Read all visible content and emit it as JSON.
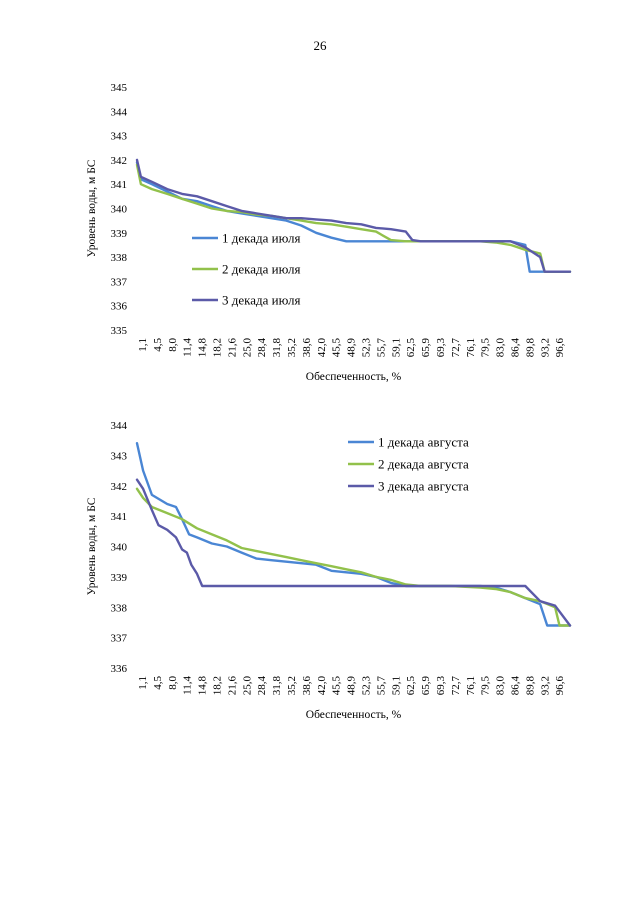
{
  "page_number": "26",
  "colors": {
    "series1": "#4a86d4",
    "series2": "#92c14b",
    "series3": "#5b5aa8"
  },
  "chart_data": [
    {
      "type": "line",
      "title": "",
      "xlabel": "Обеспеченность, %",
      "ylabel": "Уровень воды, м БС",
      "ylim": [
        335,
        345
      ],
      "yticks": [
        "335",
        "336",
        "337",
        "338",
        "339",
        "340",
        "341",
        "342",
        "343",
        "344",
        "345"
      ],
      "xlim": [
        1.1,
        100
      ],
      "categories": [
        "1,1",
        "4,5",
        "8,0",
        "11,4",
        "14,8",
        "18,2",
        "21,6",
        "25,0",
        "28,4",
        "31,8",
        "35,2",
        "38,6",
        "42,0",
        "45,5",
        "48,9",
        "52,3",
        "55,7",
        "59,1",
        "62,5",
        "65,9",
        "69,3",
        "72,7",
        "76,1",
        "79,5",
        "83,0",
        "86,4",
        "89,8",
        "93,2",
        "96,6"
      ],
      "legend_position": "center-left",
      "series": [
        {
          "name": "1 декада июля",
          "color_key": "series1",
          "points": [
            [
              1.1,
              341.9
            ],
            [
              2,
              341.2
            ],
            [
              4.5,
              341.0
            ],
            [
              8,
              340.7
            ],
            [
              11.4,
              340.4
            ],
            [
              14.8,
              340.3
            ],
            [
              18.2,
              340.1
            ],
            [
              21.6,
              339.9
            ],
            [
              25,
              339.8
            ],
            [
              28.4,
              339.7
            ],
            [
              31.8,
              339.6
            ],
            [
              35.2,
              339.5
            ],
            [
              38.6,
              339.3
            ],
            [
              42,
              339.0
            ],
            [
              45.5,
              338.8
            ],
            [
              48.9,
              338.65
            ],
            [
              52.3,
              338.65
            ],
            [
              55.7,
              338.65
            ],
            [
              59.1,
              338.65
            ],
            [
              62.5,
              338.65
            ],
            [
              65.9,
              338.65
            ],
            [
              72.7,
              338.65
            ],
            [
              79.5,
              338.65
            ],
            [
              86.4,
              338.65
            ],
            [
              89.8,
              338.5
            ],
            [
              90.8,
              337.4
            ],
            [
              93.2,
              337.4
            ],
            [
              100,
              337.4
            ]
          ]
        },
        {
          "name": "2 декада июля",
          "color_key": "series2",
          "points": [
            [
              1.1,
              341.8
            ],
            [
              2,
              341.0
            ],
            [
              4.5,
              340.8
            ],
            [
              8,
              340.6
            ],
            [
              11.4,
              340.4
            ],
            [
              14.8,
              340.2
            ],
            [
              18.2,
              340.0
            ],
            [
              21.6,
              339.9
            ],
            [
              25,
              339.85
            ],
            [
              28.4,
              339.75
            ],
            [
              31.8,
              339.7
            ],
            [
              35.2,
              339.6
            ],
            [
              38.6,
              339.5
            ],
            [
              42,
              339.4
            ],
            [
              45.5,
              339.35
            ],
            [
              48.9,
              339.25
            ],
            [
              52.3,
              339.15
            ],
            [
              55.7,
              339.05
            ],
            [
              59.1,
              338.7
            ],
            [
              62.5,
              338.65
            ],
            [
              65.9,
              338.65
            ],
            [
              72.7,
              338.65
            ],
            [
              79.5,
              338.65
            ],
            [
              83,
              338.6
            ],
            [
              86.4,
              338.5
            ],
            [
              89.8,
              338.3
            ],
            [
              93.2,
              338.15
            ],
            [
              94.2,
              337.4
            ],
            [
              100,
              337.4
            ]
          ]
        },
        {
          "name": "3 декада июля",
          "color_key": "series3",
          "points": [
            [
              1.1,
              342.0
            ],
            [
              2,
              341.3
            ],
            [
              4.5,
              341.1
            ],
            [
              8,
              340.8
            ],
            [
              11.4,
              340.6
            ],
            [
              14.8,
              340.5
            ],
            [
              18.2,
              340.3
            ],
            [
              21.6,
              340.1
            ],
            [
              25,
              339.9
            ],
            [
              28.4,
              339.8
            ],
            [
              31.8,
              339.7
            ],
            [
              35.2,
              339.6
            ],
            [
              38.6,
              339.6
            ],
            [
              42,
              339.55
            ],
            [
              45.5,
              339.5
            ],
            [
              48.9,
              339.4
            ],
            [
              52.3,
              339.35
            ],
            [
              55.7,
              339.2
            ],
            [
              59.1,
              339.15
            ],
            [
              62.5,
              339.05
            ],
            [
              64,
              338.7
            ],
            [
              65.9,
              338.65
            ],
            [
              72.7,
              338.65
            ],
            [
              79.5,
              338.65
            ],
            [
              86.4,
              338.65
            ],
            [
              89.8,
              338.4
            ],
            [
              93.2,
              338.0
            ],
            [
              94.2,
              337.4
            ],
            [
              100,
              337.4
            ]
          ]
        }
      ]
    },
    {
      "type": "line",
      "title": "",
      "xlabel": "Обеспеченность, %",
      "ylabel": "Уровень воды, м БС",
      "ylim": [
        336,
        344
      ],
      "yticks": [
        "336",
        "337",
        "338",
        "339",
        "340",
        "341",
        "342",
        "343",
        "344"
      ],
      "xlim": [
        1.1,
        100
      ],
      "categories": [
        "1,1",
        "4,5",
        "8,0",
        "11,4",
        "14,8",
        "18,2",
        "21,6",
        "25,0",
        "28,4",
        "31,8",
        "35,2",
        "38,6",
        "42,0",
        "45,5",
        "48,9",
        "52,3",
        "55,7",
        "59,1",
        "62,5",
        "65,9",
        "69,3",
        "72,7",
        "76,1",
        "79,5",
        "83,0",
        "86,4",
        "89,8",
        "93,2",
        "96,6"
      ],
      "legend_position": "top-right",
      "series": [
        {
          "name": "1 декада августа",
          "color_key": "series1",
          "points": [
            [
              1.1,
              343.4
            ],
            [
              2.5,
              342.5
            ],
            [
              4.5,
              341.7
            ],
            [
              8,
              341.4
            ],
            [
              10,
              341.3
            ],
            [
              11.4,
              340.9
            ],
            [
              13,
              340.4
            ],
            [
              14.8,
              340.3
            ],
            [
              18.2,
              340.1
            ],
            [
              21.6,
              340.0
            ],
            [
              25,
              339.8
            ],
            [
              28.4,
              339.6
            ],
            [
              31.8,
              339.55
            ],
            [
              35.2,
              339.5
            ],
            [
              38.6,
              339.45
            ],
            [
              42,
              339.4
            ],
            [
              45.5,
              339.2
            ],
            [
              48.9,
              339.15
            ],
            [
              52.3,
              339.1
            ],
            [
              55.7,
              339.0
            ],
            [
              59.1,
              338.8
            ],
            [
              62.5,
              338.7
            ],
            [
              65.9,
              338.7
            ],
            [
              72.7,
              338.7
            ],
            [
              79.5,
              338.7
            ],
            [
              83,
              338.65
            ],
            [
              86.4,
              338.5
            ],
            [
              89.8,
              338.3
            ],
            [
              93.2,
              338.1
            ],
            [
              94.8,
              337.4
            ],
            [
              100,
              337.4
            ]
          ]
        },
        {
          "name": "2 декада августа",
          "color_key": "series2",
          "points": [
            [
              1.1,
              341.9
            ],
            [
              2.5,
              341.6
            ],
            [
              4.5,
              341.3
            ],
            [
              8,
              341.1
            ],
            [
              11.4,
              340.9
            ],
            [
              14.8,
              340.6
            ],
            [
              18.2,
              340.4
            ],
            [
              21.6,
              340.2
            ],
            [
              25,
              339.95
            ],
            [
              28.4,
              339.85
            ],
            [
              31.8,
              339.75
            ],
            [
              35.2,
              339.65
            ],
            [
              38.6,
              339.55
            ],
            [
              42,
              339.45
            ],
            [
              45.5,
              339.35
            ],
            [
              48.9,
              339.25
            ],
            [
              52.3,
              339.15
            ],
            [
              55.7,
              339.0
            ],
            [
              59.1,
              338.9
            ],
            [
              62.5,
              338.75
            ],
            [
              65.9,
              338.7
            ],
            [
              72.7,
              338.7
            ],
            [
              79.5,
              338.65
            ],
            [
              83,
              338.6
            ],
            [
              86.4,
              338.5
            ],
            [
              89.8,
              338.3
            ],
            [
              93.2,
              338.2
            ],
            [
              96.6,
              338.0
            ],
            [
              97.6,
              337.4
            ],
            [
              100,
              337.4
            ]
          ]
        },
        {
          "name": "3 декада августа",
          "color_key": "series3",
          "points": [
            [
              1.1,
              342.2
            ],
            [
              2.5,
              341.9
            ],
            [
              4.5,
              341.2
            ],
            [
              6,
              340.7
            ],
            [
              8,
              340.55
            ],
            [
              10,
              340.3
            ],
            [
              11.4,
              339.9
            ],
            [
              12.5,
              339.8
            ],
            [
              13.5,
              339.4
            ],
            [
              14.8,
              339.1
            ],
            [
              16,
              338.7
            ],
            [
              18.2,
              338.7
            ],
            [
              25,
              338.7
            ],
            [
              35.2,
              338.7
            ],
            [
              45.5,
              338.7
            ],
            [
              55.7,
              338.7
            ],
            [
              65.9,
              338.7
            ],
            [
              76.1,
              338.7
            ],
            [
              86.4,
              338.7
            ],
            [
              89.8,
              338.7
            ],
            [
              93.2,
              338.2
            ],
            [
              96.6,
              338.05
            ],
            [
              100,
              337.4
            ]
          ]
        }
      ]
    }
  ]
}
